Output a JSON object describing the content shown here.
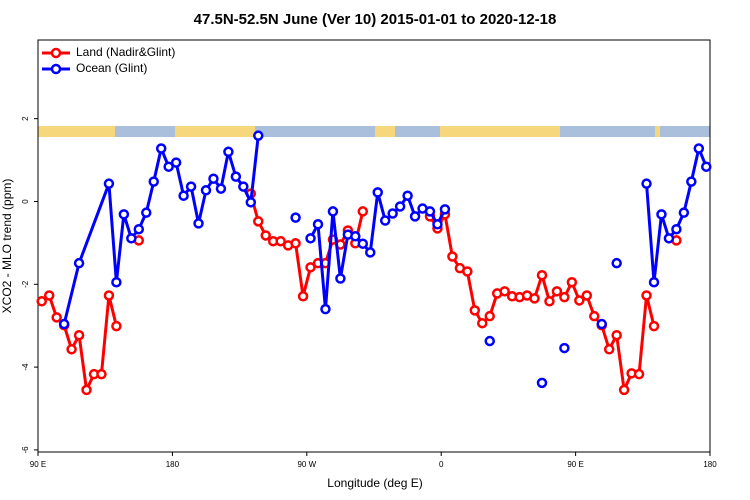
{
  "chart_data": {
    "type": "line",
    "title": "47.5N-52.5N June (Ver 10)   2015-01-01 to 2020-12-18",
    "x_label": "Longitude (deg E)",
    "y_label": "XCO2 - MLO trend (ppm)",
    "xlim": [
      90,
      540
    ],
    "xticks": [
      {
        "value": 90,
        "label": "90 E"
      },
      180,
      {
        "value": 270,
        "label": "90 W"
      },
      {
        "value": 360,
        "label": "0"
      },
      {
        "value": 450,
        "label": "90 E"
      },
      {
        "value": 540,
        "label": "180"
      }
    ],
    "ylim": [
      -6.05,
      3.9
    ],
    "yticks": [
      -6,
      -4,
      -2,
      0,
      2
    ],
    "legend": "top-left",
    "series": [
      {
        "name": "Land (Nadir&Glint)",
        "color": "#ff0000",
        "x": [
          92.5,
          97.5,
          102.5,
          107.5,
          112.5,
          117.5,
          122.5,
          127.5,
          132.5,
          137.5,
          142.5,
          null,
          157.5,
          null,
          232.5,
          237.5,
          242.5,
          247.5,
          252.5,
          257.5,
          262.5,
          267.5,
          272.5,
          277.5,
          282.5,
          287.5,
          292.5,
          297.5,
          302.5,
          307.5,
          null,
          352.5,
          357.5,
          362.5,
          367.5,
          372.5,
          377.5,
          382.5,
          387.5,
          392.5,
          397.5,
          402.5,
          407.5,
          412.5,
          417.5,
          422.5,
          427.5,
          432.5,
          437.5,
          442.5,
          447.5,
          452.5,
          457.5,
          462.5,
          467.5,
          472.5,
          477.5,
          482.5,
          487.5,
          492.5,
          497.5,
          502.5,
          null,
          517.5
        ],
        "values": [
          -2.41,
          -2.27,
          -2.8,
          -2.99,
          -3.57,
          -3.23,
          -4.55,
          -4.17,
          -4.17,
          -2.27,
          -3.01,
          null,
          -0.94,
          null,
          0.19,
          -0.48,
          -0.82,
          -0.96,
          -0.96,
          -1.06,
          -1.01,
          -2.29,
          -1.59,
          -1.49,
          -1.49,
          -0.92,
          -1.04,
          -0.7,
          -1.01,
          -0.24,
          null,
          -0.36,
          -0.65,
          -0.31,
          -1.33,
          -1.61,
          -1.69,
          -2.63,
          -2.94,
          -2.77,
          -2.22,
          -2.17,
          -2.29,
          -2.31,
          -2.27,
          -2.34,
          -1.78,
          -2.41,
          -2.17,
          -2.31,
          -1.95,
          -2.39,
          -2.27,
          -2.77,
          -2.99,
          -3.57,
          -3.23,
          -4.55,
          -4.15,
          -4.17,
          -2.27,
          -3.01,
          null,
          -0.94
        ]
      },
      {
        "name": "Ocean (Glint)",
        "color": "#0000ff",
        "x": [
          107.5,
          117.5,
          137.5,
          142.5,
          147.5,
          152.5,
          157.5,
          162.5,
          167.5,
          172.5,
          177.5,
          182.5,
          187.5,
          192.5,
          197.5,
          202.5,
          207.5,
          212.5,
          217.5,
          222.5,
          227.5,
          232.5,
          237.5,
          null,
          262.5,
          null,
          272.5,
          277.5,
          282.5,
          287.5,
          292.5,
          297.5,
          302.5,
          307.5,
          312.5,
          317.5,
          322.5,
          327.5,
          332.5,
          337.5,
          342.5,
          347.5,
          352.5,
          357.5,
          362.5,
          null,
          392.5,
          null,
          427.5,
          null,
          442.5,
          null,
          467.5,
          null,
          477.5,
          null,
          497.5,
          502.5,
          507.5,
          512.5,
          517.5,
          522.5,
          527.5,
          532.5,
          537.5
        ],
        "values": [
          -2.96,
          -1.49,
          0.43,
          -1.95,
          -0.31,
          -0.89,
          -0.67,
          -0.27,
          0.48,
          1.28,
          0.84,
          0.94,
          0.14,
          0.36,
          -0.53,
          0.27,
          0.55,
          0.31,
          1.2,
          0.6,
          0.36,
          -0.02,
          1.59,
          null,
          -0.39,
          null,
          -0.89,
          -0.55,
          -2.6,
          -0.24,
          -1.86,
          -0.8,
          -0.84,
          -1.02,
          -1.23,
          0.22,
          -0.46,
          -0.29,
          -0.12,
          0.14,
          -0.36,
          -0.17,
          -0.24,
          -0.55,
          -0.19,
          null,
          -3.37,
          null,
          -4.38,
          null,
          -3.54,
          null,
          -2.96,
          null,
          -1.49,
          null,
          0.43,
          -1.95,
          -0.31,
          -0.89,
          -0.67,
          -0.27,
          0.48,
          1.28,
          0.84
        ]
      }
    ]
  }
}
